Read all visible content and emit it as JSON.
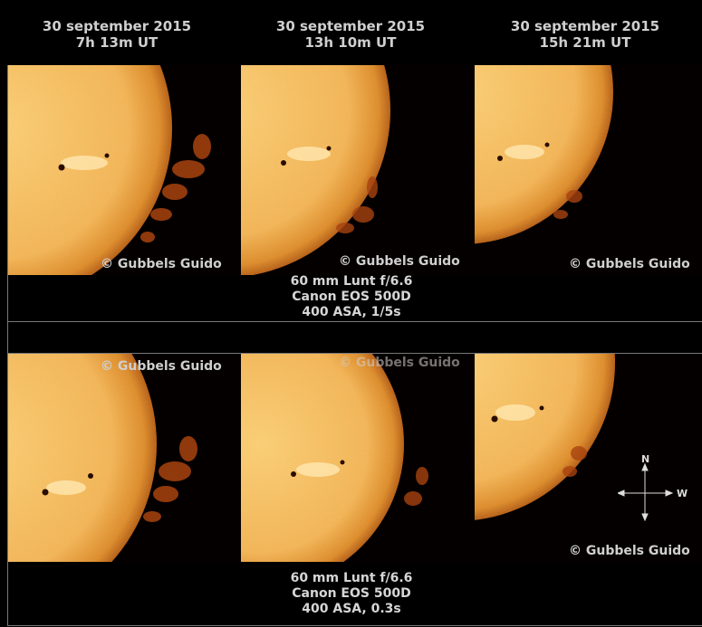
{
  "headers": [
    {
      "date": "30 september 2015",
      "time": "7h 13m UT"
    },
    {
      "date": "30 september 2015",
      "time": "13h 10m UT"
    },
    {
      "date": "30 september 2015",
      "time": "15h 21m UT"
    }
  ],
  "copyright": "© Gubbels Guido",
  "top_caption": {
    "line1": "60 mm Lunt f/6.6",
    "line2": "Canon EOS 500D",
    "line3": "400 ASA, 1/5s"
  },
  "bottom_caption": {
    "line1": "60 mm Lunt f/6.6",
    "line2": "Canon EOS 500D",
    "line3": "400 ASA, 0.3s"
  },
  "compass": {
    "north": "N",
    "west": "W"
  },
  "colors": {
    "sun_core": "#fbbd58",
    "sun_limb": "#c86a10",
    "prominence": "#a8430f",
    "background": "#000000",
    "text": "#cfcfcf"
  }
}
